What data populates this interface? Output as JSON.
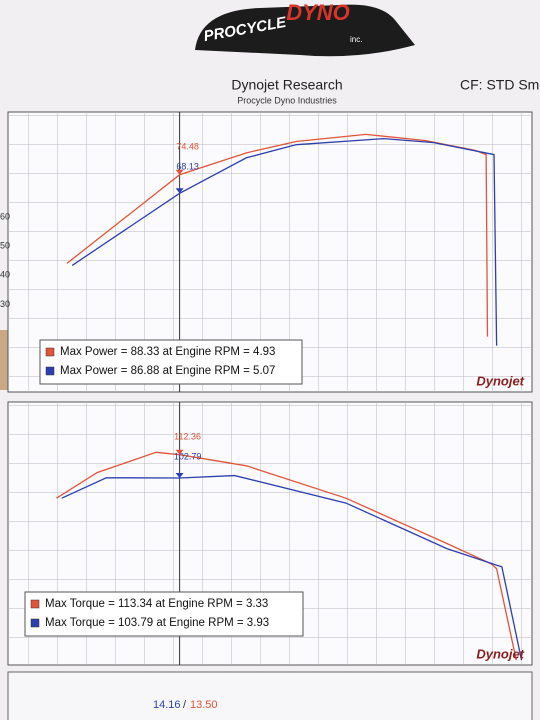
{
  "header": {
    "logo_main": "PROCYCLE",
    "logo_accent": "DYNO",
    "logo_suffix": "inc.",
    "title": "Dynojet Research",
    "subtitle": "Procycle Dyno Industries",
    "cf": "CF: STD Sm"
  },
  "chart_data": [
    {
      "type": "line",
      "brand": "Dynojet",
      "xlim": [
        2.2,
        6.2
      ],
      "ylim": [
        0,
        96
      ],
      "yticks": [
        30,
        40,
        50,
        60
      ],
      "grid": true,
      "cursor_x": 3.51,
      "series": [
        {
          "name": "Max Power = 88.33 at Engine RPM = 4.93",
          "color": "#e0553a",
          "x": [
            2.65,
            3.51,
            4.02,
            4.4,
            4.93,
            5.39,
            5.77,
            5.85,
            5.86
          ],
          "values": [
            44.1,
            74.48,
            82,
            85.9,
            88.33,
            86.2,
            82.8,
            81.4,
            19
          ]
        },
        {
          "name": "Max Power = 86.88 at Engine RPM = 5.07",
          "color": "#2c3fb0",
          "x": [
            2.69,
            3.51,
            4.02,
            4.4,
            5.07,
            5.45,
            5.91,
            5.93
          ],
          "values": [
            43.4,
            68.13,
            80.3,
            84.8,
            86.88,
            85.5,
            81.4,
            15.9
          ]
        }
      ],
      "annotations": [
        {
          "value": 74.48,
          "color": "#e0553a"
        },
        {
          "value": 68.13,
          "color": "#2c3fb0"
        }
      ]
    },
    {
      "type": "line",
      "brand": "Dynojet",
      "xlim": [
        2.2,
        6.2
      ],
      "ylim": [
        26,
        134
      ],
      "grid": true,
      "cursor_x": 3.51,
      "series": [
        {
          "name": "Max Torque = 113.34 at Engine RPM = 3.33",
          "color": "#e0553a",
          "x": [
            2.57,
            2.88,
            3.33,
            3.51,
            4.02,
            4.78,
            5.55,
            5.89,
            5.93,
            6.08
          ],
          "values": [
            94.5,
            105,
            113.34,
            112.36,
            107.8,
            94.5,
            75.9,
            67.5,
            65.5,
            28
          ]
        },
        {
          "name": "Max Torque = 103.79 at Engine RPM = 3.93",
          "color": "#2c3fb0",
          "x": [
            2.61,
            2.95,
            3.51,
            3.93,
            4.78,
            5.55,
            5.97,
            6.12
          ],
          "values": [
            94.5,
            102.9,
            102.79,
            103.79,
            92.5,
            73.8,
            66.3,
            28
          ]
        }
      ],
      "annotations": [
        {
          "value": 112.36,
          "color": "#e0553a"
        },
        {
          "value": 102.79,
          "color": "#2c3fb0"
        }
      ]
    }
  ],
  "footer": {
    "readout_a": "14.16",
    "readout_sep": "/",
    "readout_b": "13.50"
  }
}
